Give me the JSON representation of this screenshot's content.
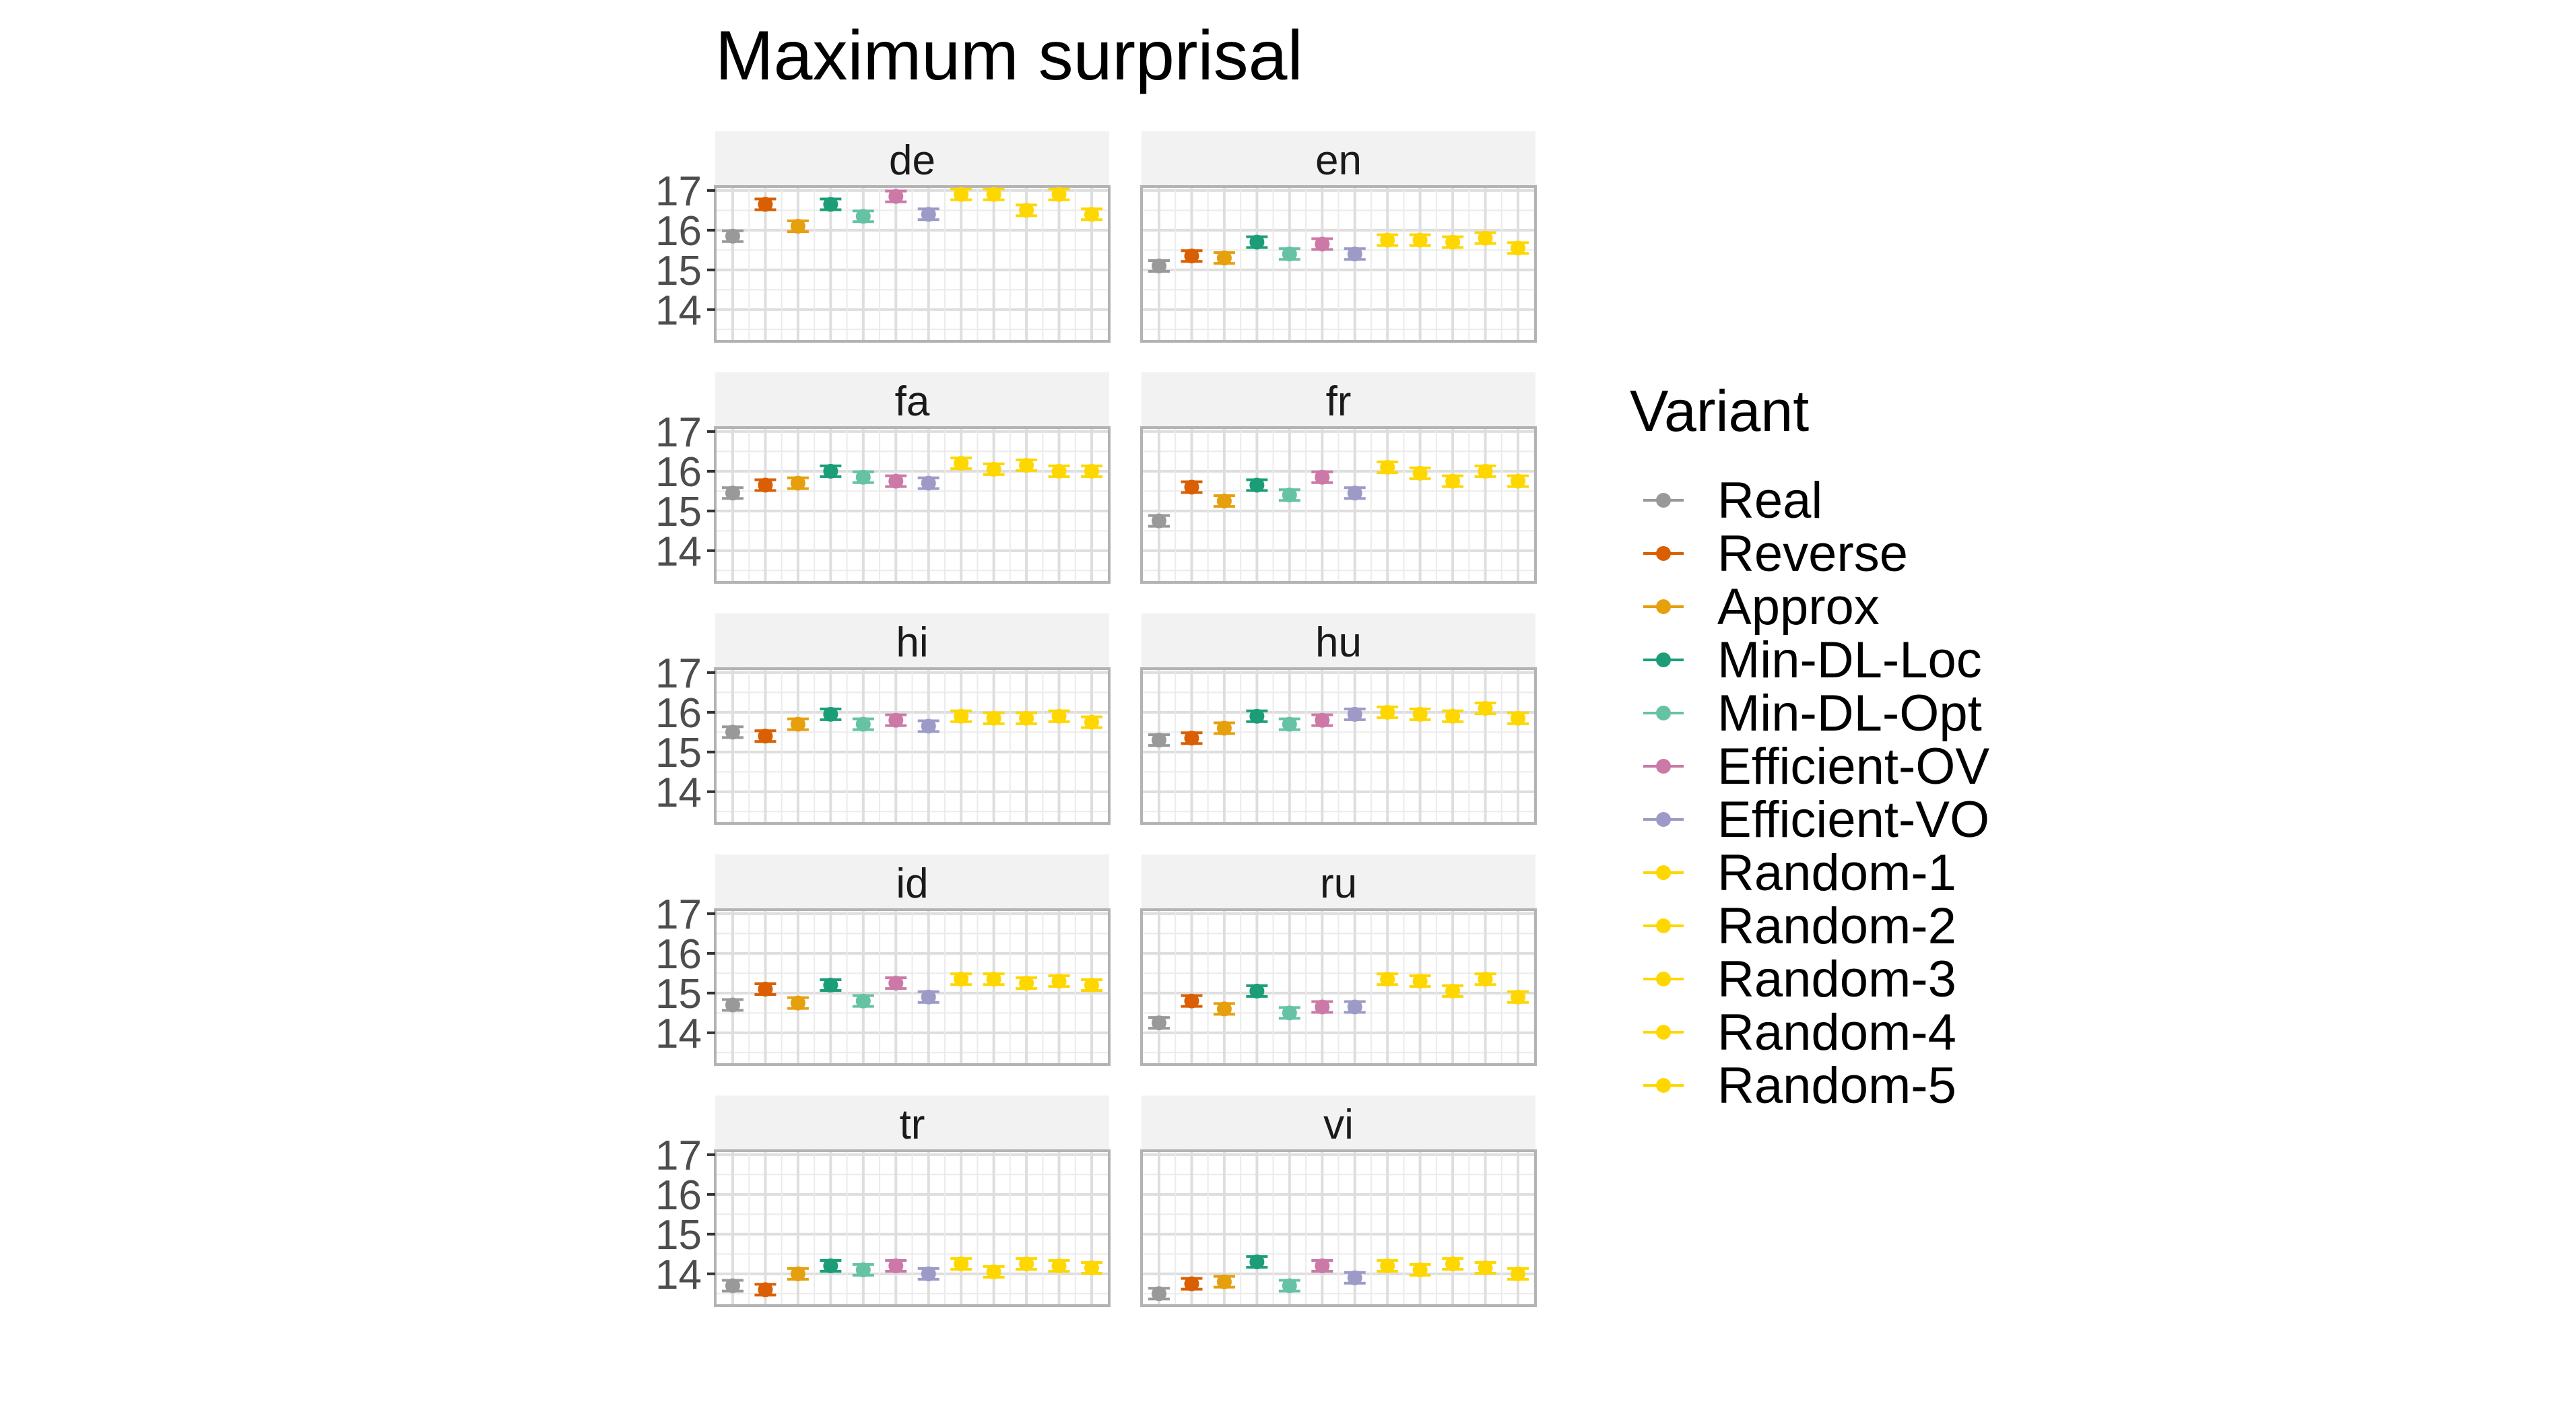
{
  "chart_data": {
    "type": "scatter",
    "title": "Maximum surprisal",
    "xlabel": "",
    "ylabel": "",
    "ylim": [
      13.2,
      17.1
    ],
    "yticks": [
      14,
      15,
      16,
      17
    ],
    "grid": true,
    "facet_layout": "2 columns x 5 rows",
    "legend": {
      "title": "Variant",
      "position": "right",
      "entries": [
        "Real",
        "Reverse",
        "Approx",
        "Min-DL-Loc",
        "Min-DL-Opt",
        "Efficient-OV",
        "Efficient-VO",
        "Random-1",
        "Random-2",
        "Random-3",
        "Random-4",
        "Random-5"
      ]
    },
    "colors": {
      "Real": "#999999",
      "Reverse": "#D95F02",
      "Approx": "#E6A00E",
      "Min-DL-Loc": "#1B9E77",
      "Min-DL-Opt": "#66C2A5",
      "Efficient-OV": "#CC79A7",
      "Efficient-VO": "#9E9AC8",
      "Random-1": "#FFD700",
      "Random-2": "#FFD700",
      "Random-3": "#FFD700",
      "Random-4": "#FFD700",
      "Random-5": "#FFD700"
    },
    "panels": [
      {
        "label": "de",
        "series": {
          "Real": 15.85,
          "Reverse": 16.65,
          "Approx": 16.1,
          "Min-DL-Loc": 16.65,
          "Min-DL-Opt": 16.35,
          "Efficient-OV": 16.85,
          "Efficient-VO": 16.4,
          "Random-1": 16.9,
          "Random-2": 16.9,
          "Random-3": 16.5,
          "Random-4": 16.9,
          "Random-5": 16.4
        }
      },
      {
        "label": "en",
        "series": {
          "Real": 15.1,
          "Reverse": 15.35,
          "Approx": 15.3,
          "Min-DL-Loc": 15.7,
          "Min-DL-Opt": 15.4,
          "Efficient-OV": 15.65,
          "Efficient-VO": 15.4,
          "Random-1": 15.75,
          "Random-2": 15.75,
          "Random-3": 15.7,
          "Random-4": 15.8,
          "Random-5": 15.55
        }
      },
      {
        "label": "fa",
        "series": {
          "Real": 15.45,
          "Reverse": 15.65,
          "Approx": 15.7,
          "Min-DL-Loc": 16.0,
          "Min-DL-Opt": 15.85,
          "Efficient-OV": 15.75,
          "Efficient-VO": 15.7,
          "Random-1": 16.2,
          "Random-2": 16.05,
          "Random-3": 16.15,
          "Random-4": 16.0,
          "Random-5": 16.0
        }
      },
      {
        "label": "fr",
        "series": {
          "Real": 14.75,
          "Reverse": 15.6,
          "Approx": 15.25,
          "Min-DL-Loc": 15.65,
          "Min-DL-Opt": 15.4,
          "Efficient-OV": 15.85,
          "Efficient-VO": 15.45,
          "Random-1": 16.1,
          "Random-2": 15.95,
          "Random-3": 15.75,
          "Random-4": 16.0,
          "Random-5": 15.75
        }
      },
      {
        "label": "hi",
        "series": {
          "Real": 15.5,
          "Reverse": 15.4,
          "Approx": 15.7,
          "Min-DL-Loc": 15.95,
          "Min-DL-Opt": 15.7,
          "Efficient-OV": 15.8,
          "Efficient-VO": 15.65,
          "Random-1": 15.9,
          "Random-2": 15.85,
          "Random-3": 15.85,
          "Random-4": 15.9,
          "Random-5": 15.75
        }
      },
      {
        "label": "hu",
        "series": {
          "Real": 15.3,
          "Reverse": 15.35,
          "Approx": 15.6,
          "Min-DL-Loc": 15.9,
          "Min-DL-Opt": 15.7,
          "Efficient-OV": 15.8,
          "Efficient-VO": 15.95,
          "Random-1": 16.0,
          "Random-2": 15.95,
          "Random-3": 15.9,
          "Random-4": 16.1,
          "Random-5": 15.85
        }
      },
      {
        "label": "id",
        "series": {
          "Real": 14.7,
          "Reverse": 15.1,
          "Approx": 14.75,
          "Min-DL-Loc": 15.2,
          "Min-DL-Opt": 14.8,
          "Efficient-OV": 15.25,
          "Efficient-VO": 14.9,
          "Random-1": 15.35,
          "Random-2": 15.35,
          "Random-3": 15.25,
          "Random-4": 15.3,
          "Random-5": 15.2
        }
      },
      {
        "label": "ru",
        "series": {
          "Real": 14.25,
          "Reverse": 14.8,
          "Approx": 14.6,
          "Min-DL-Loc": 15.05,
          "Min-DL-Opt": 14.5,
          "Efficient-OV": 14.65,
          "Efficient-VO": 14.65,
          "Random-1": 15.35,
          "Random-2": 15.3,
          "Random-3": 15.05,
          "Random-4": 15.35,
          "Random-5": 14.9
        }
      },
      {
        "label": "tr",
        "series": {
          "Real": 13.7,
          "Reverse": 13.6,
          "Approx": 14.0,
          "Min-DL-Loc": 14.2,
          "Min-DL-Opt": 14.1,
          "Efficient-OV": 14.2,
          "Efficient-VO": 14.0,
          "Random-1": 14.25,
          "Random-2": 14.05,
          "Random-3": 14.25,
          "Random-4": 14.2,
          "Random-5": 14.15
        }
      },
      {
        "label": "vi",
        "series": {
          "Real": 13.5,
          "Reverse": 13.75,
          "Approx": 13.8,
          "Min-DL-Loc": 14.3,
          "Min-DL-Opt": 13.7,
          "Efficient-OV": 14.2,
          "Efficient-VO": 13.9,
          "Random-1": 14.2,
          "Random-2": 14.1,
          "Random-3": 14.25,
          "Random-4": 14.15,
          "Random-5": 14.0
        }
      }
    ]
  }
}
